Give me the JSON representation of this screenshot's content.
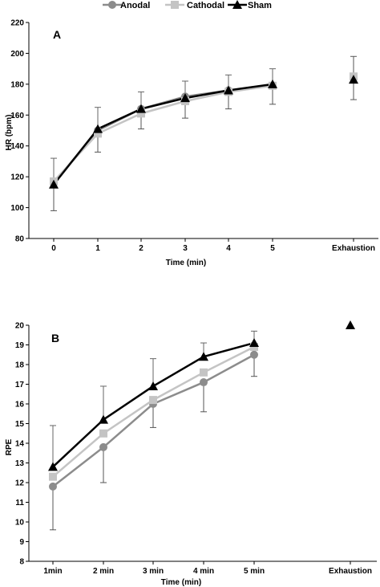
{
  "chart_data": [
    {
      "type": "line",
      "panel_label": "A",
      "xlabel": "Time (min)",
      "ylabel": "HR (bpm)",
      "categories": [
        "0",
        "1",
        "2",
        "3",
        "4",
        "5",
        "Exhaustion"
      ],
      "ylim": [
        80,
        220
      ],
      "yticks": [
        80,
        100,
        120,
        140,
        160,
        180,
        200,
        220
      ],
      "grid": false,
      "series": [
        {
          "name": "Anodal",
          "marker": "circle",
          "color": "#8c8c8c",
          "values": [
            116,
            150,
            164,
            172,
            176,
            179,
            184
          ],
          "error_upper": [
            null,
            null,
            null,
            null,
            null,
            null,
            198
          ],
          "error_lower": [
            98,
            null,
            null,
            null,
            null,
            null,
            170
          ]
        },
        {
          "name": "Cathodal",
          "marker": "square",
          "color": "#c4c4c4",
          "values": [
            117,
            148,
            161,
            169,
            175,
            179,
            185
          ],
          "error_upper": [
            null,
            null,
            null,
            null,
            null,
            null,
            null
          ],
          "error_lower": [
            null,
            136,
            151,
            158,
            164,
            167,
            null
          ]
        },
        {
          "name": "Sham",
          "marker": "triangle",
          "color": "#000000",
          "values": [
            115,
            151,
            164,
            171,
            176,
            180,
            183
          ],
          "error_upper": [
            132,
            165,
            175,
            182,
            186,
            190,
            null
          ],
          "error_lower": [
            null,
            null,
            null,
            null,
            null,
            null,
            null
          ]
        }
      ]
    },
    {
      "type": "line",
      "panel_label": "B",
      "xlabel": "Time (min)",
      "ylabel": "RPE",
      "categories": [
        "1min",
        "2 min",
        "3 min",
        "4 min",
        "5 min",
        "Exhaustion"
      ],
      "ylim": [
        8,
        20
      ],
      "yticks": [
        8,
        9,
        10,
        11,
        12,
        13,
        14,
        15,
        16,
        17,
        18,
        19,
        20
      ],
      "grid": false,
      "series": [
        {
          "name": "Anodal",
          "marker": "circle",
          "color": "#8c8c8c",
          "values": [
            11.8,
            13.8,
            16.0,
            17.1,
            18.5,
            null
          ],
          "error_upper": [
            null,
            null,
            null,
            null,
            null,
            null
          ],
          "error_lower": [
            9.6,
            12.0,
            14.8,
            15.6,
            17.4,
            null
          ]
        },
        {
          "name": "Cathodal",
          "marker": "square",
          "color": "#c4c4c4",
          "values": [
            12.3,
            14.5,
            16.2,
            17.6,
            18.9,
            null
          ],
          "error_upper": [
            null,
            null,
            null,
            null,
            null,
            null
          ],
          "error_lower": [
            null,
            null,
            null,
            null,
            null,
            null
          ]
        },
        {
          "name": "Sham",
          "marker": "triangle",
          "color": "#000000",
          "values": [
            12.8,
            15.2,
            16.9,
            18.4,
            19.1,
            20.0
          ],
          "error_upper": [
            14.9,
            16.9,
            18.3,
            19.1,
            19.7,
            null
          ],
          "error_lower": [
            null,
            null,
            null,
            null,
            null,
            null
          ]
        }
      ]
    }
  ],
  "legend": {
    "placement": "top-center",
    "entries": [
      {
        "name": "Anodal",
        "marker": "circle",
        "color": "#8c8c8c"
      },
      {
        "name": "Cathodal",
        "marker": "square",
        "color": "#c4c4c4"
      },
      {
        "name": "Sham",
        "marker": "triangle",
        "color": "#000000"
      }
    ]
  }
}
